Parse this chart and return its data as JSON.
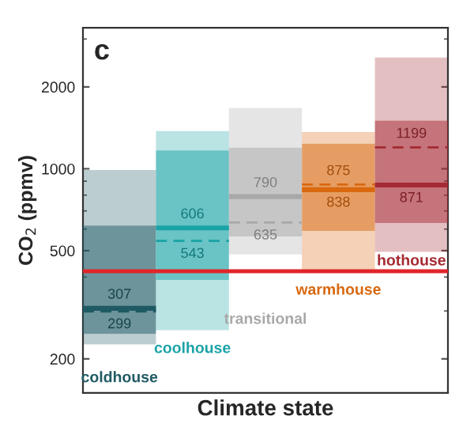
{
  "chart_data": {
    "type": "box",
    "xlabel": "Climate state",
    "ylabel": "CO$_{2}$ (ppmv)",
    "categories": [
      "coldhouse",
      "coolhouse",
      "transitional",
      "warmhouse",
      "hothouse"
    ],
    "colors": [
      "#1f5a64",
      "#1aa3a6",
      "#a8a8a8",
      "#d9680f",
      "#a52a33"
    ],
    "boxes": [
      {
        "low": 226,
        "q1": 247,
        "median": 307,
        "q3": 618,
        "high": 990,
        "mean": 299
      },
      {
        "low": 255,
        "q1": 390,
        "median": 606,
        "q3": 1168,
        "high": 1376,
        "mean": 543
      },
      {
        "low": 484,
        "q1": 564,
        "median": 790,
        "q3": 1195,
        "high": 1674,
        "mean": 635
      },
      {
        "low": 415,
        "q1": 591,
        "median": 838,
        "q3": 1237,
        "high": 1365,
        "mean": 875
      },
      {
        "low": 495,
        "q1": 632,
        "median": 871,
        "q3": 1504,
        "high": 2564,
        "mean": 1199
      }
    ],
    "log": "y",
    "ylim": [
      150,
      3300
    ],
    "yticks": [
      200,
      500,
      1000,
      2000
    ],
    "ref_lines": [
      {
        "axis": "y",
        "value": 420,
        "color": "#e0252a"
      }
    ],
    "annotations": [
      "c",
      {
        "text": "307",
        "x": "coldhouse",
        "y": 307
      },
      {
        "text": "299",
        "x": "coldhouse",
        "y": 299
      },
      {
        "text": "606",
        "x": "coolhouse",
        "y": 606
      },
      {
        "text": "543",
        "x": "coolhouse",
        "y": 543
      },
      {
        "text": "790",
        "x": "transitional",
        "y": 790
      },
      {
        "text": "635",
        "x": "transitional",
        "y": 635
      },
      {
        "text": "875",
        "x": "warmhouse",
        "y": 875
      },
      {
        "text": "838",
        "x": "warmhouse",
        "y": 838
      },
      {
        "text": "1199",
        "x": "hothouse",
        "y": 1199
      },
      {
        "text": "871",
        "x": "hothouse",
        "y": 871
      }
    ],
    "grid": false,
    "legend": false
  }
}
